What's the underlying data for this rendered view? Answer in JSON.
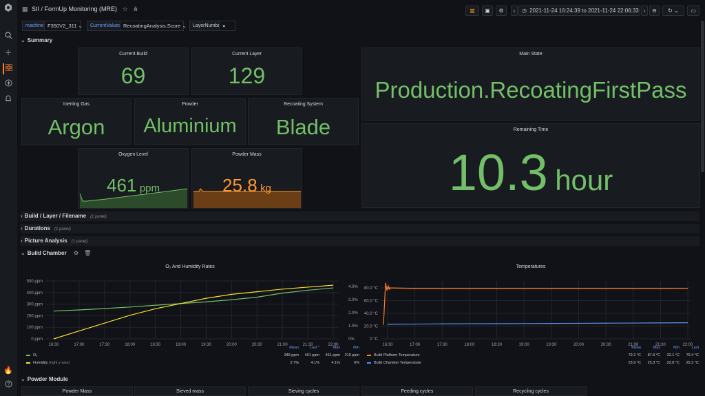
{
  "app": {
    "breadcrumb": "SII / FormUp Monitoring (MRE)",
    "time_range": "2021-11-24 16:24:39 to 2021-11-24 22:06:33"
  },
  "variables": {
    "machine_label": "machine",
    "machine_value": "F350V2_311",
    "current_values_label": "CurrentValues",
    "current_values_value": "RecoatingAnalysis.Score",
    "layer_number_label": "LayerNumber"
  },
  "rows": {
    "summary": "Summary",
    "build_layer": "Build / Layer / Filename",
    "build_layer_sub": "(1 panel)",
    "durations": "Durations",
    "durations_sub": "(1 panel)",
    "picture": "Picture Analysis",
    "picture_sub": "(1 panel)",
    "build_chamber": "Build Chamber",
    "powder_module": "Powder Module"
  },
  "stats": {
    "current_build": {
      "title": "Current Build",
      "value": "69"
    },
    "current_layer": {
      "title": "Current Layer",
      "value": "129"
    },
    "main_state": {
      "title": "Main State",
      "value": "Production.RecoatingFirstPass"
    },
    "inerting_gas": {
      "title": "Inerting Gas",
      "value": "Argon"
    },
    "powder": {
      "title": "Powder",
      "value": "Aluminium"
    },
    "recoating_system": {
      "title": "Recoating System",
      "value": "Blade"
    },
    "remaining_time": {
      "title": "Remaining Time",
      "value": "10.3",
      "unit": "hour"
    },
    "oxygen_level": {
      "title": "Oxygen Level",
      "value": "461",
      "unit": "ppm",
      "color": "#73bf69"
    },
    "powder_mass": {
      "title": "Powder Mass",
      "value": "25.8",
      "unit": "kg",
      "color": "#ff9830"
    }
  },
  "powder_module_panels": [
    "Powder Mass",
    "Sieved mass",
    "Sieving cycles",
    "Feeding cycles",
    "Recycling cycles"
  ],
  "chart_data": [
    {
      "type": "line",
      "title": "O₂ And Humidity Rates",
      "x": [
        "16:30",
        "17:00",
        "17:30",
        "18:00",
        "18:30",
        "19:00",
        "19:30",
        "20:00",
        "20:30",
        "21:00",
        "21:30",
        "22:00"
      ],
      "y_left_ticks": [
        "0 ppm",
        "100 ppm",
        "200 ppm",
        "300 ppm",
        "400 ppm",
        "500 ppm"
      ],
      "y_right_ticks": [
        "0%",
        "1.0%",
        "2.0%",
        "3.0%",
        "4.0%"
      ],
      "ylim": [
        0,
        500
      ],
      "series": [
        {
          "name": "O₂",
          "axis": "left",
          "color": "#73bf69",
          "values": [
            240,
            250,
            262,
            275,
            290,
            305,
            320,
            338,
            360,
            395,
            420,
            440
          ],
          "mean": "348 ppm",
          "last": "461 ppm",
          "max": "461 ppm",
          "min": "210 ppm"
        },
        {
          "name": "Humidity",
          "name_suffix": "(right y-axis)",
          "axis": "right",
          "color": "#fade2a",
          "values": [
            0.0,
            0.6,
            1.2,
            1.8,
            2.3,
            2.7,
            3.1,
            3.4,
            3.6,
            3.8,
            3.95,
            4.1
          ],
          "mean": "2.7%",
          "last": "4.1%",
          "max": "4.1%",
          "min": "0%"
        }
      ],
      "legend_headers": [
        "Mean",
        "Last *",
        "Max",
        "Min"
      ]
    },
    {
      "type": "line",
      "title": "Temperatures",
      "x": [
        "16:30",
        "17:00",
        "17:30",
        "18:00",
        "18:30",
        "19:00",
        "19:30",
        "20:00",
        "20:30",
        "21:00",
        "21:30",
        "22:00"
      ],
      "y_ticks": [
        "0 °C",
        "20.0 °C",
        "40.0 °C",
        "60.0 °C",
        "80.0 °C"
      ],
      "ylim": [
        0,
        90
      ],
      "series": [
        {
          "name": "Build Platform Temperature",
          "color": "#ff7f2a",
          "values": [
            80,
            79.2,
            79.2,
            79.2,
            79.2,
            79.2,
            79.2,
            79.2,
            79.2,
            79.2,
            79.2,
            79.4
          ],
          "mean": "79.2 °C",
          "max": "87.9 °C",
          "min": "22.1 °C",
          "last": "79.4 °C"
        },
        {
          "name": "Build Chamber Temperature",
          "color": "#5794f2",
          "values": [
            22.8,
            23.2,
            23.5,
            23.7,
            23.8,
            24.0,
            24.2,
            24.4,
            24.6,
            24.8,
            25.0,
            25.3
          ],
          "mean": "23.9 °C",
          "max": "25.3 °C",
          "min": "22.8 °C",
          "last": "25.3 °C"
        }
      ],
      "legend_headers": [
        "Mean",
        "Max",
        "Min",
        "Last"
      ]
    }
  ]
}
